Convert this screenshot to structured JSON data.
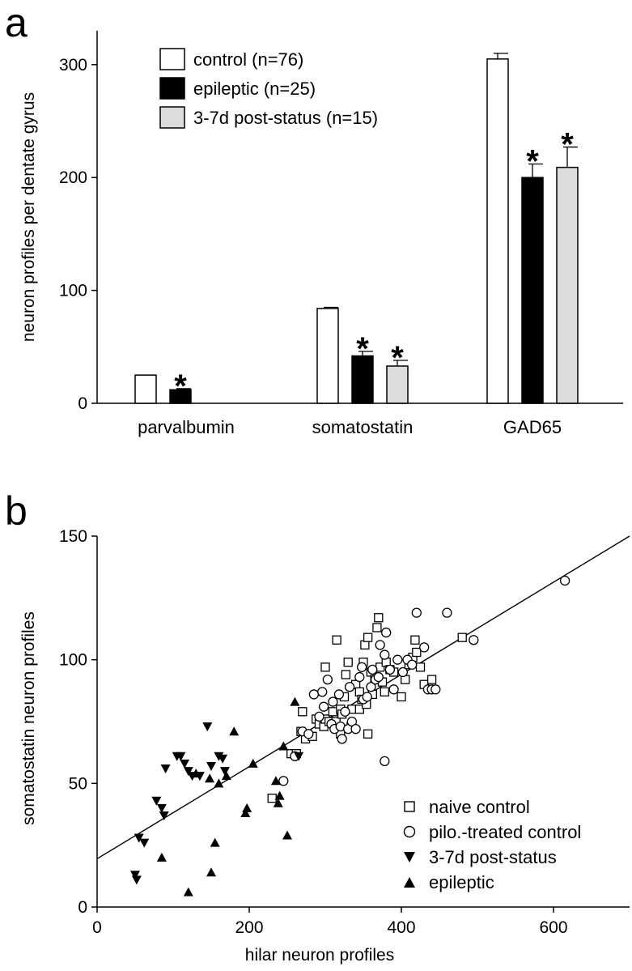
{
  "chart_data": [
    {
      "panel": "a",
      "type": "bar",
      "ylabel": "neuron profiles per dentate gyrus",
      "ylim": [
        0,
        330
      ],
      "yticks": [
        0,
        100,
        200,
        300
      ],
      "categories": [
        "parvalbumin",
        "somatostatin",
        "GAD65"
      ],
      "series": [
        {
          "name": "control (n=76)",
          "color": "#ffffff",
          "values": [
            25,
            84,
            305
          ],
          "errors": [
            0,
            1,
            5
          ],
          "significant": [
            false,
            false,
            false
          ]
        },
        {
          "name": "epileptic (n=25)",
          "color": "#000000",
          "values": [
            12,
            42,
            200
          ],
          "errors": [
            1,
            4,
            12
          ],
          "significant": [
            true,
            true,
            true
          ]
        },
        {
          "name": "3-7d post-status (n=15)",
          "color": "#dcdcdc",
          "values": [
            null,
            33,
            209
          ],
          "errors": [
            null,
            5,
            18
          ],
          "significant": [
            false,
            true,
            true
          ]
        }
      ],
      "significance_marker": "*",
      "legend_position": "top-left"
    },
    {
      "panel": "b",
      "type": "scatter",
      "xlabel": "hilar neuron profiles",
      "ylabel": "somatostatin neuron profiles",
      "xlim": [
        0,
        700
      ],
      "ylim": [
        0,
        150
      ],
      "xticks": [
        0,
        200,
        400,
        600
      ],
      "yticks": [
        0,
        50,
        100,
        150
      ],
      "legend_position": "bottom-right",
      "fit_line": {
        "x": [
          0,
          700
        ],
        "y": [
          19.5,
          150
        ]
      },
      "series": [
        {
          "name": "naive control",
          "marker": "square",
          "points": [
            [
              230,
              44
            ],
            [
              255,
              62
            ],
            [
              262,
              62
            ],
            [
              270,
              79
            ],
            [
              268,
              71
            ],
            [
              274,
              68
            ],
            [
              283,
              69
            ],
            [
              288,
              76
            ],
            [
              292,
              74
            ],
            [
              298,
              73
            ],
            [
              300,
              97
            ],
            [
              300,
              76
            ],
            [
              305,
              75
            ],
            [
              310,
              79
            ],
            [
              314,
              75
            ],
            [
              315,
              108
            ],
            [
              320,
              80
            ],
            [
              320,
              70
            ],
            [
              322,
              78
            ],
            [
              325,
              85
            ],
            [
              327,
              94
            ],
            [
              330,
              99
            ],
            [
              334,
              73
            ],
            [
              335,
              80
            ],
            [
              340,
              90
            ],
            [
              345,
              87
            ],
            [
              345,
              80
            ],
            [
              348,
              84
            ],
            [
              350,
              99
            ],
            [
              352,
              106
            ],
            [
              356,
              109
            ],
            [
              354,
              82
            ],
            [
              356,
              70
            ],
            [
              360,
              95
            ],
            [
              362,
              86
            ],
            [
              365,
              92
            ],
            [
              368,
              113
            ],
            [
              370,
              117
            ],
            [
              372,
              97
            ],
            [
              375,
              91
            ],
            [
              378,
              87
            ],
            [
              380,
              99
            ],
            [
              385,
              96
            ],
            [
              390,
              95
            ],
            [
              400,
              85
            ],
            [
              405,
              92
            ],
            [
              410,
              98
            ],
            [
              415,
              101
            ],
            [
              418,
              108
            ],
            [
              420,
              103
            ],
            [
              425,
              97
            ],
            [
              430,
              90
            ],
            [
              440,
              92
            ],
            [
              480,
              109
            ]
          ]
        },
        {
          "name": "pilo.-treated control",
          "marker": "circle",
          "points": [
            [
              245,
              51
            ],
            [
              260,
              61
            ],
            [
              270,
              71
            ],
            [
              278,
              70
            ],
            [
              285,
              86
            ],
            [
              292,
              77
            ],
            [
              296,
              87
            ],
            [
              298,
              81
            ],
            [
              303,
              92
            ],
            [
              308,
              74
            ],
            [
              310,
              83
            ],
            [
              312,
              72
            ],
            [
              318,
              86
            ],
            [
              320,
              73
            ],
            [
              322,
              68
            ],
            [
              326,
              79
            ],
            [
              330,
              72
            ],
            [
              332,
              89
            ],
            [
              335,
              75
            ],
            [
              340,
              72
            ],
            [
              345,
              93
            ],
            [
              348,
              97
            ],
            [
              350,
              84
            ],
            [
              355,
              85
            ],
            [
              360,
              89
            ],
            [
              362,
              96
            ],
            [
              366,
              92
            ],
            [
              370,
              93
            ],
            [
              372,
              106
            ],
            [
              378,
              102
            ],
            [
              380,
              111
            ],
            [
              378,
              59
            ],
            [
              385,
              96
            ],
            [
              390,
              88
            ],
            [
              395,
              100
            ],
            [
              402,
              95
            ],
            [
              408,
              100
            ],
            [
              414,
              98
            ],
            [
              420,
              119
            ],
            [
              430,
              105
            ],
            [
              435,
              88
            ],
            [
              440,
              88
            ],
            [
              445,
              88
            ],
            [
              460,
              119
            ],
            [
              495,
              108
            ],
            [
              615,
              132
            ]
          ]
        },
        {
          "name": "3-7d post-status",
          "marker": "triangle-down",
          "points": [
            [
              50,
              13
            ],
            [
              52,
              11
            ],
            [
              55,
              28
            ],
            [
              62,
              26
            ],
            [
              78,
              43
            ],
            [
              85,
              40
            ],
            [
              88,
              37
            ],
            [
              90,
              56
            ],
            [
              105,
              61
            ],
            [
              110,
              61
            ],
            [
              115,
              58
            ],
            [
              120,
              55
            ],
            [
              125,
              53
            ],
            [
              135,
              53
            ],
            [
              145,
              73
            ],
            [
              150,
              57
            ],
            [
              160,
              61
            ],
            [
              165,
              60
            ],
            [
              168,
              55
            ],
            [
              265,
              61
            ]
          ]
        },
        {
          "name": "epileptic",
          "marker": "triangle-up",
          "points": [
            [
              85,
              20
            ],
            [
              120,
              6
            ],
            [
              130,
              54
            ],
            [
              148,
              52
            ],
            [
              150,
              14
            ],
            [
              155,
              26
            ],
            [
              160,
              50
            ],
            [
              170,
              53
            ],
            [
              180,
              71
            ],
            [
              195,
              38
            ],
            [
              197,
              40
            ],
            [
              205,
              58
            ],
            [
              235,
              51
            ],
            [
              238,
              42
            ],
            [
              240,
              45
            ],
            [
              245,
              65
            ],
            [
              250,
              29
            ],
            [
              260,
              83
            ]
          ]
        }
      ]
    }
  ]
}
